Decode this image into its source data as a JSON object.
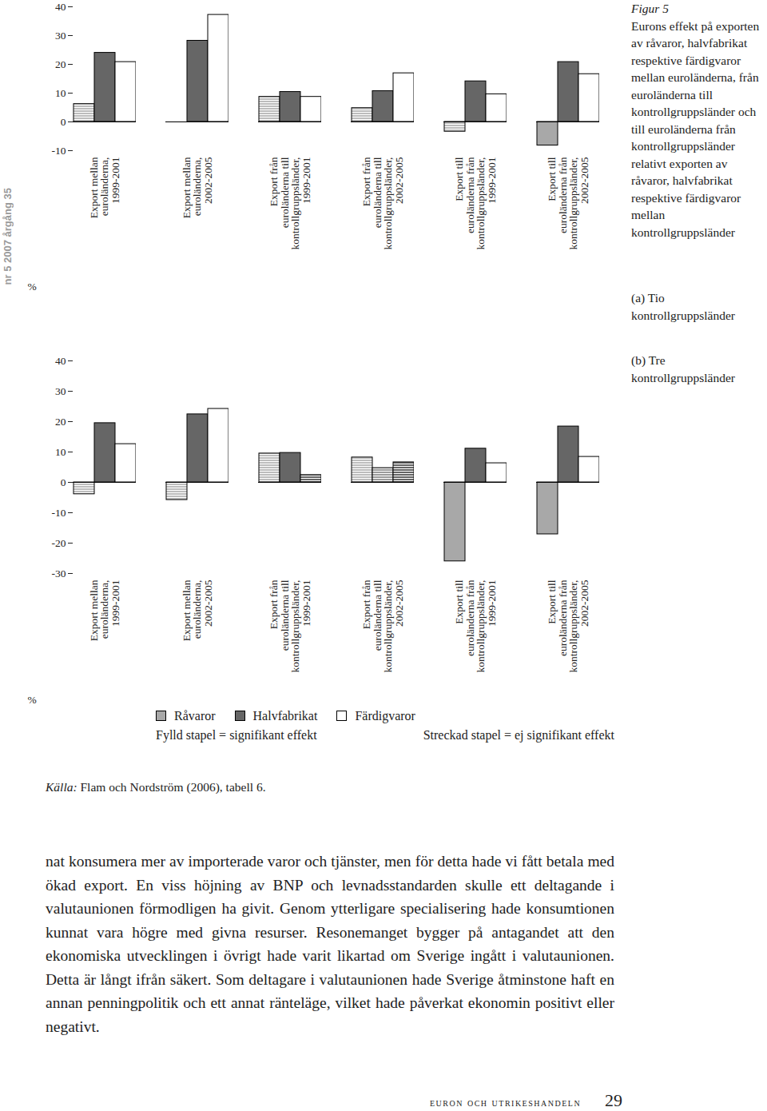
{
  "chart_data": [
    {
      "type": "bar",
      "title": "(a) Tio kontrollgruppsländer",
      "y_label": "%",
      "categories": [
        "Export mellan\neuroländerna,\n1999-2001",
        "Export mellan\neuroländerna,\n2002-2005",
        "Export från\neuroländerna till\nkontrollgruppsländer,\n1999-2001",
        "Export från\neuroländerna till\nkontrollgruppsländer,\n2002-2005",
        "Export till\neuroländerna från\nkontrollgruppsländer,\n1999-2001",
        "Export till\neuroländerna från\nkontrollgruppsländer,\n2002-2005"
      ],
      "series": [
        {
          "name": "Råvaror",
          "color": "#a8a8a8",
          "values": [
            6.2,
            null,
            8.7,
            4.8,
            -3.4,
            -8.2
          ],
          "significant": [
            false,
            null,
            false,
            false,
            false,
            true
          ]
        },
        {
          "name": "Halvfabrikat",
          "color": "#666666",
          "values": [
            24.0,
            28.2,
            10.4,
            10.7,
            14.1,
            20.8
          ],
          "significant": [
            true,
            true,
            true,
            true,
            true,
            true
          ]
        },
        {
          "name": "Färdigvaror",
          "color": "#ffffff",
          "values": [
            20.8,
            37.2,
            8.7,
            16.9,
            9.6,
            16.6
          ],
          "significant": [
            true,
            true,
            true,
            true,
            true,
            true
          ]
        }
      ],
      "ylim": [
        -10,
        40
      ],
      "yticks": [
        -10,
        0,
        10,
        20,
        30,
        40
      ],
      "grid": false
    },
    {
      "type": "bar",
      "title": "(b) Tre kontrollgruppsländer",
      "y_label": "%",
      "categories": [
        "Export mellan\neuroländerna,\n1999-2001",
        "Export mellan\neuroländerna,\n2002-2005",
        "Export från\neuroländerna till\nkontrollgruppsländer,\n1999-2001",
        "Export från\neuroländerna till\nkontrollgruppsländer,\n2002-2005",
        "Export till\neuroländerna från\nkontrollgruppsländer,\n1999-2001",
        "Export till\neuroländerna från\nkontrollgruppsländer,\n2002-2005"
      ],
      "series": [
        {
          "name": "Råvaror",
          "color": "#a8a8a8",
          "values": [
            -3.9,
            -5.8,
            9.5,
            8.2,
            -26.0,
            -17.1
          ],
          "significant": [
            false,
            false,
            false,
            false,
            true,
            true
          ]
        },
        {
          "name": "Halvfabrikat",
          "color": "#666666",
          "values": [
            19.5,
            22.4,
            9.7,
            4.7,
            11.1,
            18.4
          ],
          "significant": [
            true,
            true,
            true,
            false,
            true,
            true
          ]
        },
        {
          "name": "Färdigvaror",
          "color": "#ffffff",
          "values": [
            12.6,
            24.2,
            2.4,
            6.6,
            6.3,
            8.4
          ],
          "significant": [
            true,
            true,
            false,
            false,
            true,
            true
          ]
        }
      ],
      "ylim": [
        -30,
        40
      ],
      "yticks": [
        -30,
        -20,
        -10,
        0,
        10,
        20,
        30,
        40
      ],
      "grid": false,
      "legend": "bottom",
      "legend_notes": [
        "Fylld stapel = signifikant effekt",
        "Streckad stapel = ej signifikant effekt"
      ]
    }
  ],
  "figure": {
    "label": "Figur 5",
    "caption": "Eurons effekt på exporten av råvaror, halvfabrikat respektive färdigvaror mellan euroländerna, från euroländerna till kontrollgruppsländer och till euroländerna från kontrollgruppsländer relativt exporten av råvaror, halvfabrikat respektive färdigvaror mellan kontrollgruppsländer"
  },
  "source": {
    "label": "Källa:",
    "text": "Flam och Nordström (2006), tabell 6."
  },
  "body_text": "nat konsumera mer av importerade varor och tjänster, men för detta hade vi fått betala med ökad export. En viss höjning av BNP och levnadsstandarden skulle ett deltagande i valutaunionen förmodligen ha givit. Genom ytterligare specialisering hade konsumtionen kunnat vara högre med givna resurser. Resonemanget bygger på antagandet att den ekonomiska utvecklingen i övrigt hade varit likartad om Sverige ingått i valutaunionen. Detta är långt ifrån säkert. Som deltagare i valutaunionen hade Sverige åtminstone haft en annan penningpolitik och ett annat ränteläge, vilket hade påverkat ekonomin positivt eller negativt.",
  "footer": {
    "running_head": "euron och utrikeshandeln",
    "page": "29"
  },
  "margin_note": "nr 5 2007 årgång 35"
}
